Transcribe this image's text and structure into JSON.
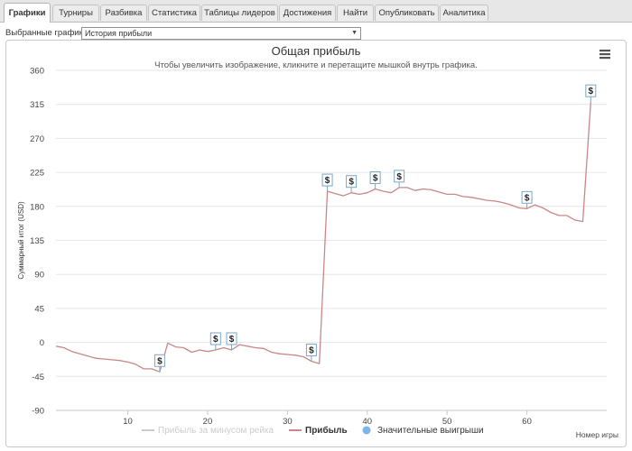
{
  "tabs": [
    {
      "label": "Графики",
      "active": true
    },
    {
      "label": "Турниры"
    },
    {
      "label": "Разбивка"
    },
    {
      "label": "Статистика"
    },
    {
      "label": "Таблицы лидеров"
    },
    {
      "label": "Достижения"
    },
    {
      "label": "Найти"
    },
    {
      "label": "Опубликовать"
    },
    {
      "label": "Аналитика"
    }
  ],
  "selector": {
    "label": "Выбранные графики:",
    "value": "История прибыли"
  },
  "chart_data": {
    "type": "line",
    "title": "Общая прибыль",
    "subtitle": "Чтобы увеличить изображение, кликните и перетащите мышкой внутрь графика.",
    "ylabel": "Суммарный итог (USD)",
    "xlabel": "Номер игры",
    "ylim": [
      -90,
      360
    ],
    "yticks": [
      -90,
      -45,
      0,
      45,
      90,
      135,
      180,
      225,
      270,
      315,
      360
    ],
    "xlim": [
      1,
      70
    ],
    "xticks": [
      10,
      20,
      30,
      40,
      50,
      60
    ],
    "grid": true,
    "legend_position": "bottom",
    "series": [
      {
        "name": "Прибыль",
        "color": "#c9878a",
        "x": [
          1,
          2,
          3,
          4,
          5,
          6,
          7,
          8,
          9,
          10,
          11,
          12,
          13,
          14,
          15,
          16,
          17,
          18,
          19,
          20,
          21,
          22,
          23,
          24,
          25,
          26,
          27,
          28,
          29,
          30,
          31,
          32,
          33,
          34,
          35,
          36,
          37,
          38,
          39,
          40,
          41,
          42,
          43,
          44,
          45,
          46,
          47,
          48,
          49,
          50,
          51,
          52,
          53,
          54,
          55,
          56,
          57,
          58,
          59,
          60,
          61,
          62,
          63,
          64,
          65,
          66,
          67,
          68
        ],
        "values": [
          -5,
          -7,
          -12,
          -15,
          -18,
          -21,
          -22,
          -23,
          -24,
          -26,
          -29,
          -35,
          -35,
          -39,
          -1,
          -6,
          -7,
          -13,
          -10,
          -12,
          -10,
          -7,
          -10,
          -3,
          -5,
          -7,
          -8,
          -13,
          -15,
          -16,
          -17,
          -19,
          -25,
          -28,
          200,
          197,
          194,
          198,
          196,
          198,
          203,
          200,
          198,
          205,
          205,
          201,
          203,
          202,
          199,
          196,
          196,
          193,
          192,
          190,
          188,
          187,
          185,
          182,
          178,
          177,
          182,
          178,
          172,
          168,
          168,
          162,
          160,
          318
        ],
        "marker_symbol": "$",
        "marker_x": [
          14,
          21,
          23,
          33,
          35,
          38,
          41,
          44,
          60,
          68
        ]
      },
      {
        "name": "Прибыль за минусом рейка",
        "color": "#cccccc",
        "visible": false,
        "values": []
      },
      {
        "name": "Значительные выигрыши",
        "color": "#7cb5ec",
        "legend_symbol": "circle",
        "values": []
      }
    ],
    "menu_icon": "hamburger-menu-icon"
  }
}
